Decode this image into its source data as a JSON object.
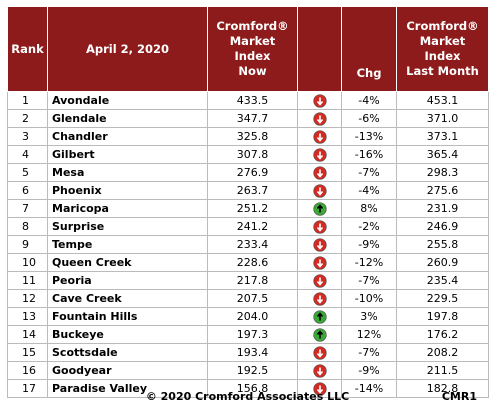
{
  "table": {
    "header": {
      "rank": "Rank",
      "date": "April 2, 2020",
      "now": [
        "Cromford®",
        "Market",
        "Index",
        "Now"
      ],
      "chg": "Chg",
      "last": [
        "Cromford®",
        "Market",
        "Index",
        "Last Month"
      ]
    },
    "rows": [
      [
        "1",
        "Avondale",
        "433.5",
        "-4%",
        "453.1"
      ],
      [
        "2",
        "Glendale",
        "347.7",
        "-6%",
        "371.0"
      ],
      [
        "3",
        "Chandler",
        "325.8",
        "-13%",
        "373.1"
      ],
      [
        "4",
        "Gilbert",
        "307.8",
        "-16%",
        "365.4"
      ],
      [
        "5",
        "Mesa",
        "276.9",
        "-7%",
        "298.3"
      ],
      [
        "6",
        "Phoenix",
        "263.7",
        "-4%",
        "275.6"
      ],
      [
        "7",
        "Maricopa",
        "251.2",
        "8%",
        "231.9"
      ],
      [
        "8",
        "Surprise",
        "241.2",
        "-2%",
        "246.9"
      ],
      [
        "9",
        "Tempe",
        "233.4",
        "-9%",
        "255.8"
      ],
      [
        "10",
        "Queen Creek",
        "228.6",
        "-12%",
        "260.9"
      ],
      [
        "11",
        "Peoria",
        "217.8",
        "-7%",
        "235.4"
      ],
      [
        "12",
        "Cave Creek",
        "207.5",
        "-10%",
        "229.5"
      ],
      [
        "13",
        "Fountain Hills",
        "204.0",
        "3%",
        "197.8"
      ],
      [
        "14",
        "Buckeye",
        "197.3",
        "12%",
        "176.2"
      ],
      [
        "15",
        "Scottsdale",
        "193.4",
        "-7%",
        "208.2"
      ],
      [
        "16",
        "Goodyear",
        "192.5",
        "-9%",
        "211.5"
      ],
      [
        "17",
        "Paradise Valley",
        "156.8",
        "-14%",
        "182.8"
      ]
    ]
  },
  "footer": {
    "copyright": "© 2020 Cromford Associates LLC",
    "code": "CMR1"
  }
}
